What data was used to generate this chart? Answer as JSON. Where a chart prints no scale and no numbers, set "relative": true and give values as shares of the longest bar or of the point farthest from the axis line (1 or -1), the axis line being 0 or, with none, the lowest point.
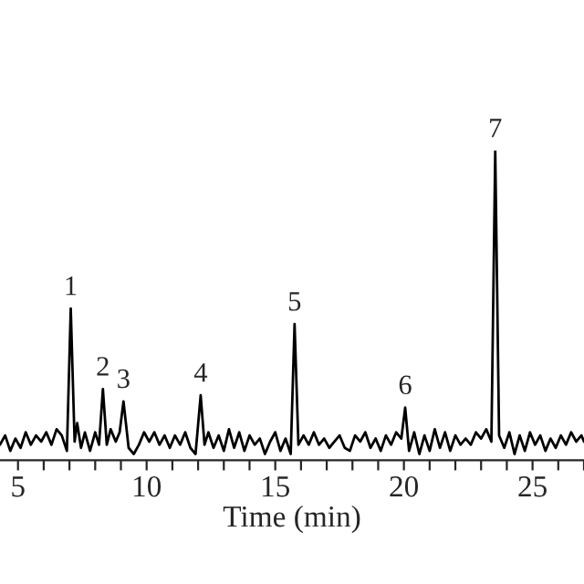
{
  "chart_data": {
    "type": "line",
    "relative": true,
    "xlabel": "Time (min)",
    "tick_labels": "x",
    "xlim": [
      4.3,
      27.0
    ],
    "xticks": [
      {
        "value": 5,
        "label": "5"
      },
      {
        "value": 6,
        "label": null
      },
      {
        "value": 7,
        "label": null
      },
      {
        "value": 8,
        "label": null
      },
      {
        "value": 9,
        "label": null
      },
      {
        "value": 10,
        "label": "10"
      },
      {
        "value": 11,
        "label": null
      },
      {
        "value": 12,
        "label": null
      },
      {
        "value": 13,
        "label": null
      },
      {
        "value": 14,
        "label": null
      },
      {
        "value": 15,
        "label": "15"
      },
      {
        "value": 16,
        "label": null
      },
      {
        "value": 17,
        "label": null
      },
      {
        "value": 18,
        "label": null
      },
      {
        "value": 19,
        "label": null
      },
      {
        "value": 20,
        "label": "20"
      },
      {
        "value": 21,
        "label": null
      },
      {
        "value": 22,
        "label": null
      },
      {
        "value": 23,
        "label": null
      },
      {
        "value": 24,
        "label": null
      },
      {
        "value": 25,
        "label": "25"
      },
      {
        "value": 26,
        "label": null
      },
      {
        "value": 27,
        "label": null
      }
    ],
    "series": [
      {
        "color": "#000000",
        "x": [
          4.3,
          4.5,
          4.7,
          4.9,
          5.1,
          5.3,
          5.5,
          5.7,
          5.9,
          6.1,
          6.3,
          6.5,
          6.7,
          6.9,
          7.05,
          7.2,
          7.3,
          7.45,
          7.6,
          7.8,
          8.0,
          8.15,
          8.3,
          8.45,
          8.6,
          8.8,
          8.95,
          9.1,
          9.3,
          9.5,
          9.7,
          9.9,
          10.1,
          10.3,
          10.5,
          10.7,
          10.9,
          11.1,
          11.3,
          11.5,
          11.7,
          11.9,
          12.1,
          12.25,
          12.4,
          12.6,
          12.8,
          13.0,
          13.2,
          13.4,
          13.6,
          13.8,
          14.0,
          14.2,
          14.4,
          14.6,
          14.8,
          15.0,
          15.2,
          15.4,
          15.6,
          15.75,
          15.9,
          16.1,
          16.3,
          16.5,
          16.7,
          16.9,
          17.1,
          17.3,
          17.5,
          17.7,
          17.9,
          18.1,
          18.3,
          18.5,
          18.7,
          18.9,
          19.1,
          19.3,
          19.5,
          19.7,
          19.9,
          20.05,
          20.2,
          20.4,
          20.6,
          20.8,
          21.0,
          21.2,
          21.4,
          21.6,
          21.8,
          22.0,
          22.2,
          22.4,
          22.6,
          22.8,
          23.0,
          23.2,
          23.4,
          23.55,
          23.7,
          23.9,
          24.1,
          24.3,
          24.5,
          24.7,
          24.9,
          25.1,
          25.3,
          25.5,
          25.7,
          25.9,
          26.1,
          26.3,
          26.5,
          26.7,
          26.9,
          27.0
        ],
        "values": [
          0.05,
          0.08,
          0.03,
          0.07,
          0.04,
          0.09,
          0.05,
          0.08,
          0.06,
          0.09,
          0.05,
          0.1,
          0.08,
          0.03,
          0.49,
          0.06,
          0.12,
          0.04,
          0.09,
          0.03,
          0.09,
          0.05,
          0.23,
          0.05,
          0.1,
          0.06,
          0.09,
          0.19,
          0.04,
          0.02,
          0.05,
          0.09,
          0.06,
          0.09,
          0.05,
          0.08,
          0.04,
          0.08,
          0.05,
          0.09,
          0.04,
          0.02,
          0.21,
          0.05,
          0.09,
          0.04,
          0.08,
          0.03,
          0.1,
          0.04,
          0.09,
          0.03,
          0.08,
          0.05,
          0.07,
          0.02,
          0.06,
          0.09,
          0.03,
          0.07,
          0.02,
          0.44,
          0.05,
          0.08,
          0.05,
          0.09,
          0.05,
          0.07,
          0.04,
          0.06,
          0.08,
          0.04,
          0.03,
          0.08,
          0.06,
          0.09,
          0.04,
          0.07,
          0.03,
          0.08,
          0.05,
          0.09,
          0.07,
          0.17,
          0.03,
          0.09,
          0.02,
          0.08,
          0.03,
          0.1,
          0.04,
          0.09,
          0.03,
          0.08,
          0.05,
          0.07,
          0.05,
          0.09,
          0.07,
          0.1,
          0.06,
          1.0,
          0.08,
          0.04,
          0.09,
          0.02,
          0.08,
          0.03,
          0.09,
          0.05,
          0.08,
          0.03,
          0.07,
          0.04,
          0.08,
          0.05,
          0.09,
          0.06,
          0.08,
          0.06
        ]
      }
    ],
    "annotations": [
      {
        "text": "1",
        "x": 7.05,
        "y": 0.49
      },
      {
        "text": "2",
        "x": 8.3,
        "y": 0.23
      },
      {
        "text": "3",
        "x": 9.1,
        "y": 0.19
      },
      {
        "text": "4",
        "x": 12.1,
        "y": 0.21
      },
      {
        "text": "5",
        "x": 15.75,
        "y": 0.44
      },
      {
        "text": "6",
        "x": 20.05,
        "y": 0.17
      },
      {
        "text": "7",
        "x": 23.55,
        "y": 1.0
      }
    ]
  }
}
